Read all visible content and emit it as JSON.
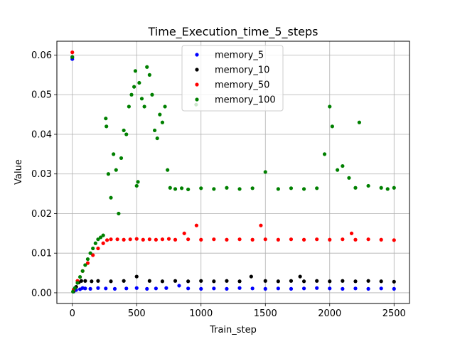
{
  "chart_data": {
    "type": "scatter",
    "title": "Time_Execution_time_5_steps",
    "xlabel": "Train_step",
    "ylabel": "Value",
    "xlim": [
      -120,
      2620
    ],
    "ylim": [
      -0.0027,
      0.0635
    ],
    "x_ticks": [
      0,
      500,
      1000,
      1500,
      2000,
      2500
    ],
    "y_ticks": [
      0.0,
      0.01,
      0.02,
      0.03,
      0.04,
      0.05,
      0.06
    ],
    "x_tick_labels": [
      "0",
      "500",
      "1000",
      "1500",
      "2000",
      "2500"
    ],
    "y_tick_labels": [
      "0.00",
      "0.01",
      "0.02",
      "0.03",
      "0.04",
      "0.05",
      "0.06"
    ],
    "grid": true,
    "legend_position": "top-center",
    "series": [
      {
        "name": "memory_5",
        "color": "#0000ff",
        "points": [
          [
            0,
            0.059
          ],
          [
            10,
            0.0003
          ],
          [
            30,
            0.0007
          ],
          [
            60,
            0.0009
          ],
          [
            80,
            0.0012
          ],
          [
            100,
            0.0011
          ],
          [
            140,
            0.001
          ],
          [
            200,
            0.0012
          ],
          [
            260,
            0.0011
          ],
          [
            330,
            0.001
          ],
          [
            420,
            0.0011
          ],
          [
            500,
            0.0012
          ],
          [
            580,
            0.001
          ],
          [
            650,
            0.0011
          ],
          [
            730,
            0.0012
          ],
          [
            830,
            0.0018
          ],
          [
            900,
            0.0011
          ],
          [
            1000,
            0.001
          ],
          [
            1100,
            0.0011
          ],
          [
            1200,
            0.001
          ],
          [
            1300,
            0.0012
          ],
          [
            1400,
            0.0011
          ],
          [
            1500,
            0.001
          ],
          [
            1600,
            0.0011
          ],
          [
            1700,
            0.001
          ],
          [
            1800,
            0.0011
          ],
          [
            1900,
            0.0012
          ],
          [
            2000,
            0.0011
          ],
          [
            2100,
            0.001
          ],
          [
            2200,
            0.0011
          ],
          [
            2300,
            0.001
          ],
          [
            2400,
            0.0011
          ],
          [
            2500,
            0.001
          ]
        ]
      },
      {
        "name": "memory_10",
        "color": "#000000",
        "points": [
          [
            0,
            0.0595
          ],
          [
            10,
            0.0004
          ],
          [
            30,
            0.0015
          ],
          [
            50,
            0.0026
          ],
          [
            70,
            0.003
          ],
          [
            100,
            0.003
          ],
          [
            150,
            0.0029
          ],
          [
            200,
            0.003
          ],
          [
            300,
            0.0029
          ],
          [
            400,
            0.003
          ],
          [
            500,
            0.0041
          ],
          [
            600,
            0.003
          ],
          [
            700,
            0.0029
          ],
          [
            800,
            0.003
          ],
          [
            900,
            0.0029
          ],
          [
            1000,
            0.003
          ],
          [
            1100,
            0.0029
          ],
          [
            1200,
            0.003
          ],
          [
            1300,
            0.0029
          ],
          [
            1390,
            0.0041
          ],
          [
            1500,
            0.003
          ],
          [
            1600,
            0.0029
          ],
          [
            1700,
            0.003
          ],
          [
            1770,
            0.0041
          ],
          [
            1800,
            0.0029
          ],
          [
            1900,
            0.003
          ],
          [
            2000,
            0.0029
          ],
          [
            2100,
            0.003
          ],
          [
            2200,
            0.0029
          ],
          [
            2300,
            0.003
          ],
          [
            2400,
            0.0029
          ],
          [
            2500,
            0.0028
          ]
        ]
      },
      {
        "name": "memory_50",
        "color": "#ff0000",
        "points": [
          [
            0,
            0.0607
          ],
          [
            10,
            0.0008
          ],
          [
            40,
            0.003
          ],
          [
            80,
            0.0055
          ],
          [
            120,
            0.0075
          ],
          [
            160,
            0.0095
          ],
          [
            200,
            0.0112
          ],
          [
            240,
            0.0125
          ],
          [
            270,
            0.0133
          ],
          [
            300,
            0.0135
          ],
          [
            350,
            0.0135
          ],
          [
            400,
            0.0134
          ],
          [
            450,
            0.0135
          ],
          [
            500,
            0.0136
          ],
          [
            550,
            0.0134
          ],
          [
            600,
            0.0135
          ],
          [
            650,
            0.0134
          ],
          [
            700,
            0.0135
          ],
          [
            750,
            0.0136
          ],
          [
            800,
            0.0134
          ],
          [
            870,
            0.015
          ],
          [
            900,
            0.0135
          ],
          [
            965,
            0.017
          ],
          [
            1000,
            0.0134
          ],
          [
            1100,
            0.0135
          ],
          [
            1200,
            0.0134
          ],
          [
            1300,
            0.0135
          ],
          [
            1400,
            0.0134
          ],
          [
            1465,
            0.017
          ],
          [
            1500,
            0.0135
          ],
          [
            1600,
            0.0134
          ],
          [
            1700,
            0.0135
          ],
          [
            1800,
            0.0134
          ],
          [
            1900,
            0.0135
          ],
          [
            2000,
            0.0134
          ],
          [
            2100,
            0.0135
          ],
          [
            2170,
            0.015
          ],
          [
            2200,
            0.0134
          ],
          [
            2300,
            0.0135
          ],
          [
            2400,
            0.0134
          ],
          [
            2500,
            0.0133
          ]
        ]
      },
      {
        "name": "memory_100",
        "color": "#008000",
        "points": [
          [
            0,
            0.0595
          ],
          [
            5,
            0.0003
          ],
          [
            20,
            0.0012
          ],
          [
            40,
            0.0025
          ],
          [
            60,
            0.004
          ],
          [
            80,
            0.0055
          ],
          [
            100,
            0.007
          ],
          [
            120,
            0.0085
          ],
          [
            140,
            0.01
          ],
          [
            160,
            0.0112
          ],
          [
            180,
            0.0125
          ],
          [
            200,
            0.0135
          ],
          [
            220,
            0.014
          ],
          [
            240,
            0.0145
          ],
          [
            260,
            0.044
          ],
          [
            265,
            0.042
          ],
          [
            280,
            0.03
          ],
          [
            300,
            0.024
          ],
          [
            320,
            0.035
          ],
          [
            340,
            0.031
          ],
          [
            360,
            0.02
          ],
          [
            380,
            0.034
          ],
          [
            400,
            0.041
          ],
          [
            420,
            0.04
          ],
          [
            440,
            0.047
          ],
          [
            460,
            0.05
          ],
          [
            480,
            0.052
          ],
          [
            490,
            0.056
          ],
          [
            500,
            0.027
          ],
          [
            510,
            0.028
          ],
          [
            520,
            0.053
          ],
          [
            540,
            0.049
          ],
          [
            560,
            0.047
          ],
          [
            580,
            0.057
          ],
          [
            600,
            0.055
          ],
          [
            620,
            0.05
          ],
          [
            640,
            0.041
          ],
          [
            660,
            0.039
          ],
          [
            680,
            0.045
          ],
          [
            700,
            0.043
          ],
          [
            720,
            0.047
          ],
          [
            740,
            0.031
          ],
          [
            760,
            0.0265
          ],
          [
            800,
            0.0262
          ],
          [
            850,
            0.0264
          ],
          [
            900,
            0.0261
          ],
          [
            962,
            0.0475
          ],
          [
            1000,
            0.0264
          ],
          [
            1100,
            0.0262
          ],
          [
            1200,
            0.0265
          ],
          [
            1300,
            0.0262
          ],
          [
            1400,
            0.0264
          ],
          [
            1500,
            0.0305
          ],
          [
            1600,
            0.0262
          ],
          [
            1700,
            0.0264
          ],
          [
            1800,
            0.0262
          ],
          [
            1900,
            0.0264
          ],
          [
            1960,
            0.035
          ],
          [
            2000,
            0.047
          ],
          [
            2020,
            0.042
          ],
          [
            2060,
            0.031
          ],
          [
            2100,
            0.032
          ],
          [
            2150,
            0.029
          ],
          [
            2200,
            0.0265
          ],
          [
            2230,
            0.043
          ],
          [
            2300,
            0.027
          ],
          [
            2400,
            0.0265
          ],
          [
            2450,
            0.0262
          ],
          [
            2500,
            0.0265
          ]
        ]
      }
    ]
  }
}
